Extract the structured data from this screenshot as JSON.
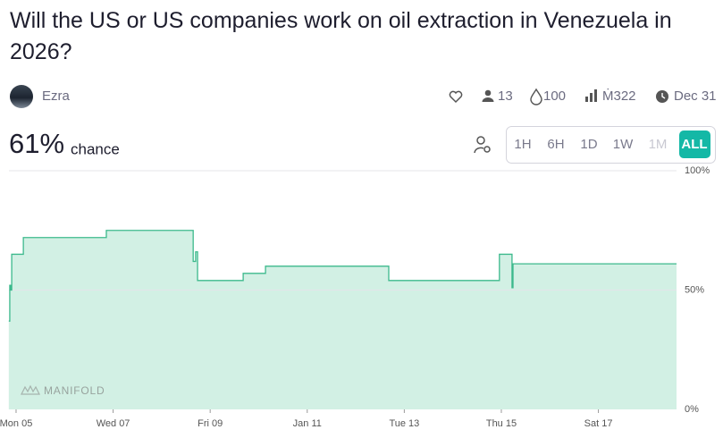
{
  "header": {
    "title": "Will the US or US companies work on oil extraction in Venezuela in 2026?",
    "author": "Ezra",
    "traders": "13",
    "liquidity": "100",
    "volume": "Ṁ322",
    "close_date": "Dec 31",
    "probability": "61%",
    "probability_label": "chance"
  },
  "time_buttons": [
    "1H",
    "6H",
    "1D",
    "1W",
    "1M",
    "ALL"
  ],
  "watermark": "MANIFOLD",
  "chart_data": {
    "type": "step-area",
    "x": [
      -0.15,
      -0.13,
      -0.11,
      -0.09,
      0.15,
      1.86,
      3.65,
      3.7,
      3.74,
      4.68,
      5.14,
      7.68,
      9.96,
      10.22,
      10.24,
      13.61
    ],
    "series": [
      {
        "name": "Probability",
        "color": "#3cb98c",
        "fill": "#d2f0e4",
        "values": [
          37,
          52,
          50,
          65,
          72,
          75,
          62,
          66,
          54,
          57,
          60,
          54,
          65,
          51,
          61,
          61
        ]
      }
    ],
    "xlim": [
      -0.147,
      13.61
    ],
    "xticks": [
      {
        "value": 0,
        "label": "Mon 05"
      },
      {
        "value": 2,
        "label": "Wed 07"
      },
      {
        "value": 4,
        "label": "Fri 09"
      },
      {
        "value": 6,
        "label": "Jan 11"
      },
      {
        "value": 8,
        "label": "Tue 13"
      },
      {
        "value": 10,
        "label": "Thu 15"
      },
      {
        "value": 12,
        "label": "Sat 17"
      }
    ],
    "ylim": [
      0,
      100
    ],
    "yticks": [
      {
        "value": 0,
        "label": "0%"
      },
      {
        "value": 50,
        "label": "50%"
      },
      {
        "value": 100,
        "label": "100%"
      }
    ],
    "grid": true
  }
}
